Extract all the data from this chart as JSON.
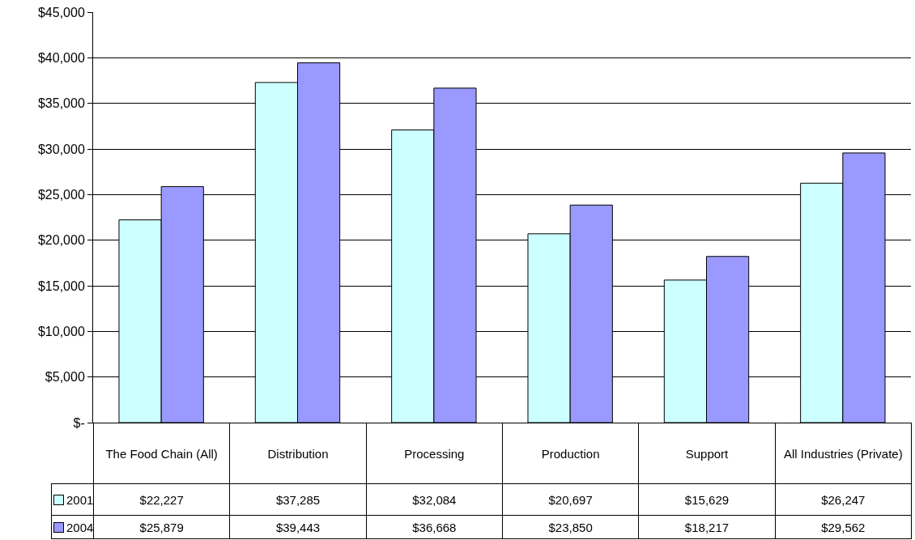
{
  "chart_data": {
    "type": "bar",
    "categories": [
      "The Food Chain (All)",
      "Distribution",
      "Processing",
      "Production",
      "Support",
      "All Industries (Private)"
    ],
    "series": [
      {
        "name": "2001",
        "color": "#ccffff",
        "values": [
          22227,
          37285,
          32084,
          20697,
          15629,
          26247
        ],
        "value_labels": [
          "$22,227",
          "$37,285",
          "$32,084",
          "$20,697",
          "$15,629",
          "$26,247"
        ]
      },
      {
        "name": "2004",
        "color": "#9999ff",
        "values": [
          25879,
          39443,
          36668,
          23850,
          18217,
          29562
        ],
        "value_labels": [
          "$25,879",
          "$39,443",
          "$36,668",
          "$23,850",
          "$18,217",
          "$29,562"
        ]
      }
    ],
    "ylim": [
      0,
      45000
    ],
    "yticks": [
      {
        "value": 0,
        "label": "$-"
      },
      {
        "value": 5000,
        "label": "$5,000"
      },
      {
        "value": 10000,
        "label": "$10,000"
      },
      {
        "value": 15000,
        "label": "$15,000"
      },
      {
        "value": 20000,
        "label": "$20,000"
      },
      {
        "value": 25000,
        "label": "$25,000"
      },
      {
        "value": 30000,
        "label": "$30,000"
      },
      {
        "value": 35000,
        "label": "$35,000"
      },
      {
        "value": 40000,
        "label": "$40,000"
      },
      {
        "value": 45000,
        "label": "$45,000"
      }
    ],
    "grid": "y",
    "legend": "bottom left"
  }
}
